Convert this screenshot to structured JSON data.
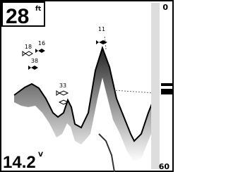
{
  "depth": {
    "value": "28",
    "unit": "ft"
  },
  "voltage": {
    "value": "14.2",
    "unit": "V"
  },
  "scale": {
    "top": "0",
    "bottom": "60"
  },
  "fish": [
    {
      "label": "11"
    },
    {
      "label": "16"
    },
    {
      "label": "18"
    },
    {
      "label": "38"
    },
    {
      "label": "33"
    }
  ]
}
